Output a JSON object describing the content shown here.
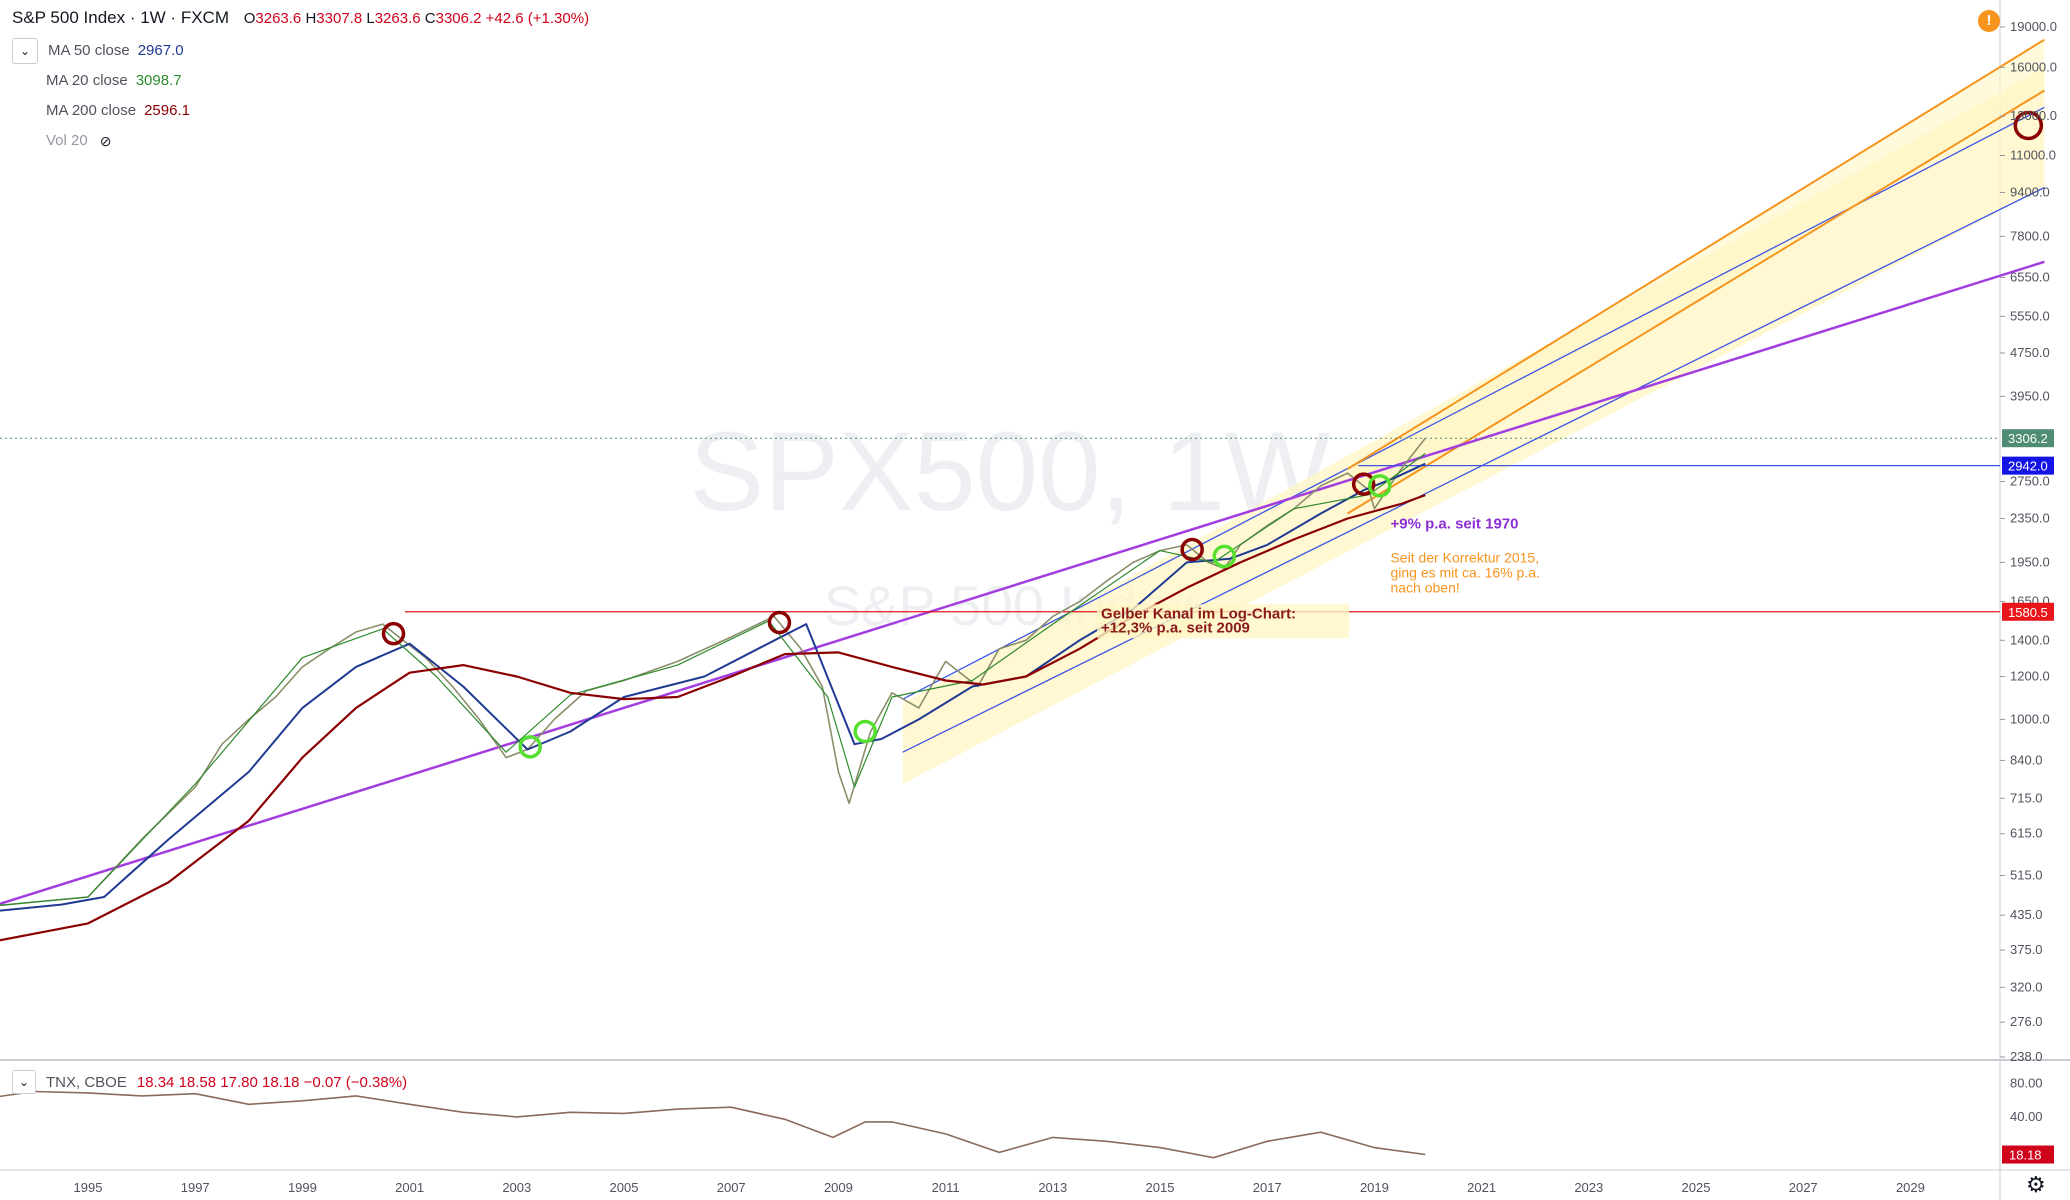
{
  "header": {
    "symbol": "S&P 500 Index · 1W · FXCM",
    "ohlc": [
      {
        "label": "O",
        "value": "3263.6"
      },
      {
        "label": "H",
        "value": "3307.8"
      },
      {
        "label": "L",
        "value": "3263.6"
      },
      {
        "label": "C",
        "value": "3306.2"
      }
    ],
    "change": "+42.6 (+1.30%)"
  },
  "indicators": [
    {
      "label": "MA 50 close",
      "value": "2967.0",
      "color": "#1f3a93"
    },
    {
      "label": "MA 20 close",
      "value": "3098.7",
      "color": "#2e8b2e"
    },
    {
      "label": "MA 200 close",
      "value": "2596.1",
      "color": "#8b0000"
    },
    {
      "label": "Vol 20",
      "value": "",
      "color": "#9598a1"
    }
  ],
  "watermark": {
    "line1": "SPX500, 1W",
    "line2": "S&P 500 Index"
  },
  "chart_data": {
    "type": "line",
    "y_scale": "log",
    "price_axis_ticks": [
      "19000.0",
      "16000.0",
      "13000.0",
      "11000.0",
      "9400.0",
      "7800.0",
      "6550.0",
      "5550.0",
      "4750.0",
      "3950.0",
      "2750.0",
      "2350.0",
      "1950.0",
      "1650.0",
      "1400.0",
      "1200.0",
      "1000.0",
      "840.0",
      "715.0",
      "615.0",
      "515.0",
      "435.0",
      "375.0",
      "320.0",
      "276.0",
      "238.0"
    ],
    "time_axis_ticks": [
      "1995",
      "1997",
      "1999",
      "2001",
      "2003",
      "2005",
      "2007",
      "2009",
      "2011",
      "2013",
      "2015",
      "2017",
      "2019",
      "2021",
      "2023",
      "2025",
      "2027",
      "2029"
    ],
    "price_labels": [
      {
        "text": "3306.2",
        "color": "#4e8c74"
      },
      {
        "text": "2942.0",
        "color": "#1414e6"
      },
      {
        "text": "1580.5",
        "color": "#e8151b"
      }
    ],
    "series": [
      {
        "name": "S&P 500",
        "x": [
          1993.0,
          1994.0,
          1995.0,
          1996.0,
          1997.0,
          1997.5,
          1998.0,
          1998.5,
          1999.0,
          1999.5,
          2000.0,
          2000.5,
          2000.8,
          2001.3,
          2001.8,
          2002.3,
          2002.8,
          2003.2,
          2003.7,
          2004.3,
          2005.0,
          2006.0,
          2007.0,
          2007.5,
          2007.8,
          2008.3,
          2008.7,
          2009.0,
          2009.2,
          2009.6,
          2010.0,
          2010.5,
          2011.0,
          2011.6,
          2012.0,
          2012.5,
          2013.0,
          2013.5,
          2014.0,
          2014.5,
          2015.0,
          2015.5,
          2015.9,
          2016.2,
          2016.5,
          2017.0,
          2017.5,
          2018.0,
          2018.5,
          2018.9,
          2019.0,
          2019.5,
          2019.95
        ],
        "y": [
          450,
          460,
          470,
          600,
          750,
          900,
          1000,
          1100,
          1250,
          1350,
          1450,
          1500,
          1420,
          1300,
          1150,
          1000,
          850,
          880,
          1000,
          1130,
          1180,
          1280,
          1420,
          1500,
          1550,
          1350,
          1150,
          800,
          700,
          950,
          1120,
          1050,
          1280,
          1150,
          1350,
          1400,
          1550,
          1650,
          1800,
          1950,
          2050,
          2100,
          1950,
          1900,
          2100,
          2280,
          2450,
          2700,
          2850,
          2650,
          2450,
          2900,
          3306
        ]
      },
      {
        "name": "MA 50 close",
        "x": [
          1993.0,
          1994.5,
          1995.3,
          1996.5,
          1998.0,
          1999.0,
          2000.0,
          2001.0,
          2002.0,
          2003.2,
          2004.0,
          2005.0,
          2006.5,
          2007.5,
          2008.4,
          2009.3,
          2009.8,
          2010.5,
          2011.5,
          2012.5,
          2013.5,
          2014.5,
          2015.5,
          2016.3,
          2017.0,
          2018.0,
          2018.8,
          2019.4,
          2019.95
        ],
        "y": [
          440,
          455,
          470,
          600,
          800,
          1050,
          1250,
          1380,
          1150,
          880,
          950,
          1100,
          1200,
          1350,
          1500,
          900,
          920,
          1000,
          1150,
          1200,
          1400,
          1600,
          1950,
          1980,
          2100,
          2400,
          2650,
          2800,
          2967
        ]
      },
      {
        "name": "MA 20 close",
        "x": [
          1993.0,
          1995.0,
          1997.0,
          1999.0,
          2000.5,
          2001.5,
          2002.8,
          2004.0,
          2006.0,
          2007.7,
          2008.8,
          2009.3,
          2010.0,
          2011.5,
          2013.0,
          2015.0,
          2016.0,
          2017.5,
          2018.9,
          2019.95
        ],
        "y": [
          450,
          470,
          760,
          1300,
          1470,
          1200,
          870,
          1110,
          1260,
          1520,
          1100,
          750,
          1100,
          1180,
          1500,
          2050,
          1950,
          2450,
          2600,
          3098
        ]
      },
      {
        "name": "MA 200 close",
        "x": [
          1993.0,
          1995.0,
          1996.5,
          1998.0,
          1999.0,
          2000.0,
          2001.0,
          2002.0,
          2003.0,
          2004.0,
          2005.0,
          2006.0,
          2007.0,
          2008.0,
          2009.0,
          2010.0,
          2011.0,
          2011.7,
          2012.5,
          2013.5,
          2014.5,
          2015.5,
          2016.5,
          2017.5,
          2018.5,
          2019.5,
          2019.95
        ],
        "y": [
          385,
          420,
          500,
          650,
          850,
          1050,
          1220,
          1260,
          1200,
          1120,
          1090,
          1100,
          1200,
          1320,
          1330,
          1250,
          1180,
          1160,
          1200,
          1350,
          1550,
          1750,
          1950,
          2150,
          2350,
          2500,
          2596
        ]
      }
    ],
    "reference_lines": [
      {
        "label": "horizontal 2942.0",
        "y": 2942,
        "color": "#3c57e6"
      },
      {
        "label": "horizontal 1580.5",
        "y": 1580.5,
        "color": "#e8151b"
      }
    ],
    "annotations": [
      {
        "text": "+9% p.a. seit 1970",
        "color": "#8e2fd5",
        "x": 2019.3,
        "y": 2250
      },
      {
        "text": "Seit der Korrektur 2015, ging es mit ca. 16% p.a. nach oben!",
        "color": "#f7941d",
        "x": 2019.3,
        "y": 1950
      },
      {
        "text": "Gelber Kanal im Log-Chart: +12,3% p.a. seit 2009",
        "color": "#8b1a1a",
        "x": 2013.9,
        "y": 1400
      }
    ],
    "markers": [
      {
        "kind": "top",
        "x": 2000.7,
        "y": 1440,
        "color": "#8b0000"
      },
      {
        "kind": "top",
        "x": 2007.9,
        "y": 1510,
        "color": "#8b0000"
      },
      {
        "kind": "top",
        "x": 2015.6,
        "y": 2060,
        "color": "#8b0000"
      },
      {
        "kind": "top",
        "x": 2018.8,
        "y": 2720,
        "color": "#8b0000"
      },
      {
        "kind": "top",
        "x": 2031.2,
        "y": 12500,
        "color": "#8b0000"
      },
      {
        "kind": "bottom",
        "x": 2003.25,
        "y": 890,
        "color": "#55e02e"
      },
      {
        "kind": "bottom",
        "x": 2009.5,
        "y": 950,
        "color": "#55e02e"
      },
      {
        "kind": "bottom",
        "x": 2016.2,
        "y": 2000,
        "color": "#55e02e"
      },
      {
        "kind": "bottom",
        "x": 2019.1,
        "y": 2700,
        "color": "#55e02e"
      }
    ]
  },
  "subchart": {
    "symbol": "TNX, CBOE",
    "values": "18.34  18.58  17.80  18.18  −0.07 (−0.38%)",
    "axis_ticks": [
      "80.00",
      "40.00"
    ],
    "last_label": "18.18",
    "x": [
      1993.0,
      1994.0,
      1995.0,
      1996.0,
      1997.0,
      1998.0,
      1999.0,
      2000.0,
      2001.0,
      2002.0,
      2003.0,
      2004.0,
      2005.0,
      2006.0,
      2007.0,
      2008.0,
      2008.9,
      2009.5,
      2010.0,
      2011.0,
      2012.0,
      2013.0,
      2014.0,
      2015.0,
      2016.0,
      2017.0,
      2018.0,
      2019.0,
      2019.95
    ],
    "y": [
      58,
      68,
      66,
      62,
      65,
      52,
      56,
      62,
      52,
      44,
      40,
      44,
      43,
      47,
      49,
      38,
      26,
      36,
      36,
      28,
      19,
      26,
      24,
      21,
      17,
      24,
      29,
      21,
      18.18
    ]
  },
  "colors": {
    "price_line": "#8a8f6a",
    "ma50": "#1f3a93",
    "ma20": "#2e8b2e",
    "ma200": "#8b0000",
    "purple_trend": "#a23de0",
    "blue_channel": "#3c57e6",
    "orange_channel": "#f7941d",
    "yellow_fill": "#fff6c4"
  }
}
